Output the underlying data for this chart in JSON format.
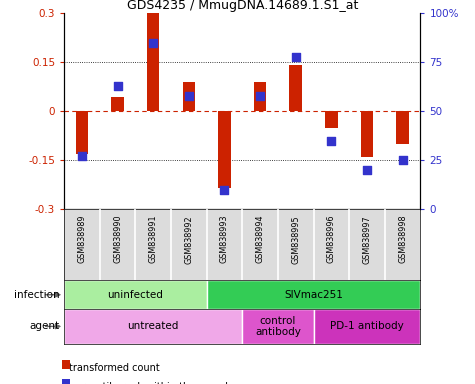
{
  "title": "GDS4235 / MmugDNA.14689.1.S1_at",
  "samples": [
    "GSM838989",
    "GSM838990",
    "GSM838991",
    "GSM838992",
    "GSM838993",
    "GSM838994",
    "GSM838995",
    "GSM838996",
    "GSM838997",
    "GSM838998"
  ],
  "red_bars": [
    -0.13,
    0.045,
    0.3,
    0.09,
    -0.235,
    0.09,
    0.143,
    -0.05,
    -0.14,
    -0.1
  ],
  "blue_squares_pct": [
    27,
    63,
    85,
    58,
    10,
    58,
    78,
    35,
    20,
    25
  ],
  "infection_groups": [
    {
      "label": "uninfected",
      "start": 0,
      "end": 4,
      "color": "#AAEEA0"
    },
    {
      "label": "SIVmac251",
      "start": 4,
      "end": 10,
      "color": "#33CC55"
    }
  ],
  "agent_groups": [
    {
      "label": "untreated",
      "start": 0,
      "end": 5,
      "color": "#F0A8E8"
    },
    {
      "label": "control\nantibody",
      "start": 5,
      "end": 7,
      "color": "#DD55CC"
    },
    {
      "label": "PD-1 antibody",
      "start": 7,
      "end": 10,
      "color": "#CC33BB"
    }
  ],
  "ylim_left": [
    -0.3,
    0.3
  ],
  "ylim_right": [
    0,
    100
  ],
  "yticks_left": [
    -0.3,
    -0.15,
    0.0,
    0.15,
    0.3
  ],
  "ytick_labels_left": [
    "-0.3",
    "-0.15",
    "0",
    "0.15",
    "0.3"
  ],
  "yticks_right": [
    0,
    25,
    50,
    75,
    100
  ],
  "ytick_labels_right": [
    "0",
    "25",
    "50",
    "75",
    "100%"
  ],
  "red_color": "#CC2200",
  "blue_color": "#3333CC",
  "bar_width": 0.35,
  "square_size": 30,
  "bg_color": "#FFFFFF"
}
